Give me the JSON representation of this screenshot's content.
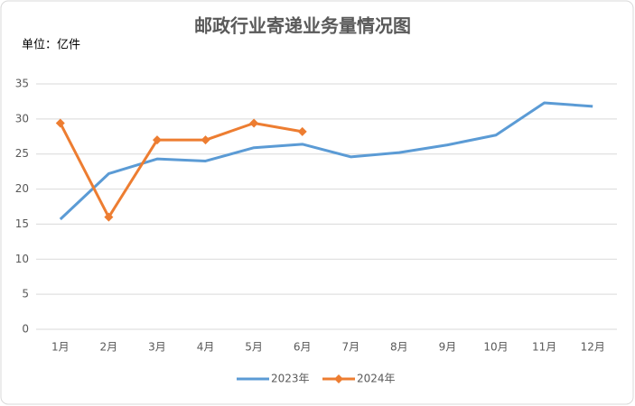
{
  "chart_data": {
    "type": "line",
    "title": "邮政行业寄递业务量情况图",
    "subtitle": "单位：亿件",
    "categories": [
      "1月",
      "2月",
      "3月",
      "4月",
      "5月",
      "6月",
      "7月",
      "8月",
      "9月",
      "10月",
      "11月",
      "12月"
    ],
    "series": [
      {
        "name": "2023年",
        "color": "#5b9bd5",
        "values": [
          15.7,
          22.2,
          24.3,
          24.0,
          25.9,
          26.4,
          24.6,
          25.2,
          26.3,
          27.7,
          32.3,
          31.8
        ]
      },
      {
        "name": "2024年",
        "color": "#ed7d31",
        "values": [
          29.4,
          16.0,
          27.0,
          27.0,
          29.4,
          28.2,
          null,
          null,
          null,
          null,
          null,
          null
        ]
      }
    ],
    "ylim": [
      0,
      35
    ],
    "yticks": [
      0,
      5,
      10,
      15,
      20,
      25,
      30,
      35
    ],
    "grid": true,
    "legend": "bottom"
  }
}
